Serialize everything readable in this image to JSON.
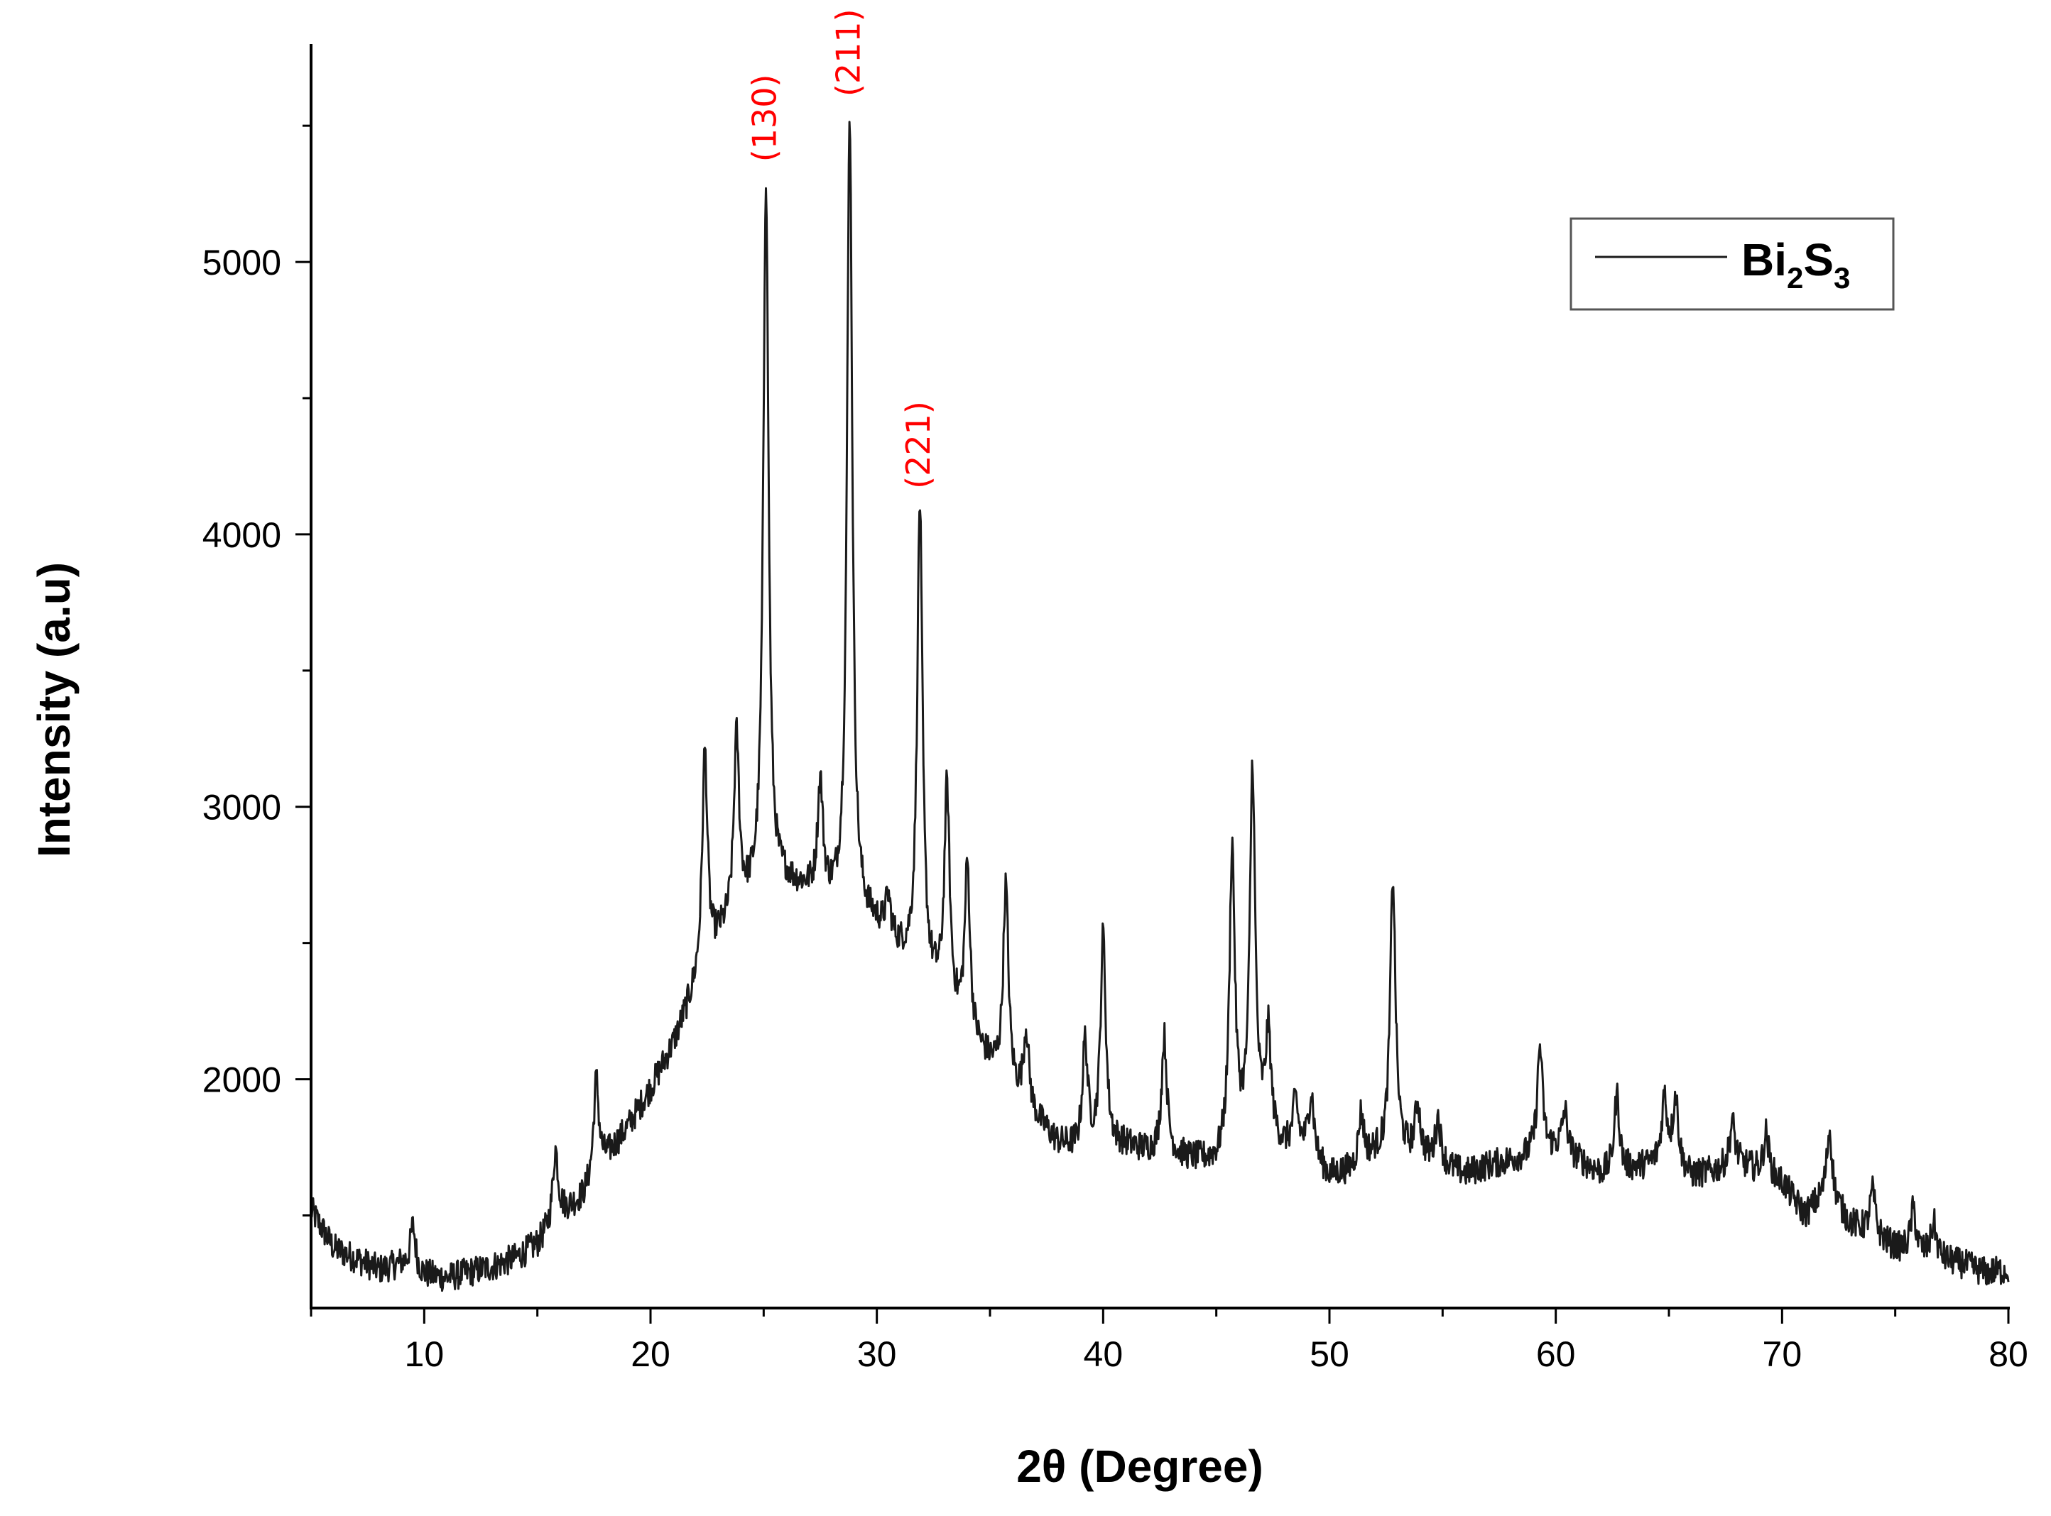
{
  "chart_data": {
    "type": "line",
    "xlabel": "2θ (Degree)",
    "ylabel": "Intensity (a.u)",
    "xlim": [
      5,
      80
    ],
    "ylim": [
      1160,
      5800
    ],
    "x_ticks": [
      10,
      20,
      30,
      40,
      50,
      60,
      70,
      80
    ],
    "y_ticks": [
      2000,
      3000,
      4000,
      5000
    ],
    "grid": false,
    "legend_position": "top-right",
    "colors": {
      "line": "#1a1a1a",
      "peak_labels": "#ff0000",
      "axis": "#000000"
    },
    "series": [
      {
        "name": "Bi2S3",
        "name_main": "Bi",
        "name_sub1": "2",
        "name_mid": "S",
        "name_sub2": "3",
        "baseline": [
          [
            5,
            1520
          ],
          [
            6,
            1380
          ],
          [
            7,
            1340
          ],
          [
            8,
            1300
          ],
          [
            9,
            1320
          ],
          [
            10,
            1280
          ],
          [
            11,
            1270
          ],
          [
            12,
            1290
          ],
          [
            13,
            1310
          ],
          [
            14,
            1340
          ],
          [
            15,
            1390
          ],
          [
            16,
            1500
          ],
          [
            17,
            1560
          ],
          [
            18,
            1700
          ],
          [
            19,
            1820
          ],
          [
            20,
            1960
          ],
          [
            21,
            2120
          ],
          [
            22,
            2330
          ],
          [
            23,
            2500
          ],
          [
            24,
            2620
          ],
          [
            25,
            2690
          ],
          [
            26,
            2710
          ],
          [
            27,
            2680
          ],
          [
            28,
            2640
          ],
          [
            29,
            2600
          ],
          [
            30,
            2550
          ],
          [
            31,
            2460
          ],
          [
            32,
            2380
          ],
          [
            33,
            2270
          ],
          [
            34,
            2150
          ],
          [
            35,
            2050
          ],
          [
            36,
            1950
          ],
          [
            37,
            1850
          ],
          [
            38,
            1760
          ],
          [
            39,
            1730
          ],
          [
            40,
            1760
          ],
          [
            41,
            1750
          ],
          [
            42,
            1730
          ],
          [
            43,
            1720
          ],
          [
            44,
            1700
          ],
          [
            45,
            1690
          ],
          [
            46,
            1780
          ],
          [
            47,
            1800
          ],
          [
            48,
            1740
          ],
          [
            49,
            1730
          ],
          [
            50,
            1640
          ],
          [
            51,
            1660
          ],
          [
            52,
            1720
          ],
          [
            53,
            1730
          ],
          [
            54,
            1710
          ],
          [
            55,
            1680
          ],
          [
            56,
            1650
          ],
          [
            57,
            1680
          ],
          [
            58,
            1700
          ],
          [
            59,
            1720
          ],
          [
            60,
            1740
          ],
          [
            61,
            1700
          ],
          [
            62,
            1650
          ],
          [
            63,
            1660
          ],
          [
            64,
            1680
          ],
          [
            65,
            1700
          ],
          [
            66,
            1640
          ],
          [
            67,
            1660
          ],
          [
            68,
            1690
          ],
          [
            69,
            1660
          ],
          [
            70,
            1620
          ],
          [
            71,
            1500
          ],
          [
            72,
            1580
          ],
          [
            73,
            1470
          ],
          [
            74,
            1430
          ],
          [
            75,
            1380
          ],
          [
            76,
            1360
          ],
          [
            77,
            1340
          ],
          [
            78,
            1320
          ],
          [
            79,
            1290
          ],
          [
            80,
            1300
          ]
        ],
        "peaks": [
          [
            9.5,
            1460
          ],
          [
            15.8,
            1740
          ],
          [
            17.6,
            2000
          ],
          [
            22.4,
            3200
          ],
          [
            23.8,
            3240
          ],
          [
            25.1,
            5300
          ],
          [
            27.5,
            3070
          ],
          [
            28.8,
            5540
          ],
          [
            30.5,
            2640
          ],
          [
            31.9,
            4100
          ],
          [
            33.1,
            3050
          ],
          [
            34.0,
            2770
          ],
          [
            35.7,
            2700
          ],
          [
            36.6,
            2170
          ],
          [
            39.2,
            2130
          ],
          [
            40.0,
            2520
          ],
          [
            42.7,
            2150
          ],
          [
            45.7,
            2840
          ],
          [
            46.6,
            3130
          ],
          [
            47.3,
            2150
          ],
          [
            48.5,
            1910
          ],
          [
            49.2,
            1940
          ],
          [
            51.4,
            1870
          ],
          [
            52.8,
            2740
          ],
          [
            53.9,
            1900
          ],
          [
            54.8,
            1850
          ],
          [
            59.3,
            2120
          ],
          [
            60.4,
            1880
          ],
          [
            62.7,
            1940
          ],
          [
            64.8,
            1930
          ],
          [
            65.3,
            1930
          ],
          [
            67.8,
            1840
          ],
          [
            69.3,
            1800
          ],
          [
            72.1,
            1810
          ],
          [
            74.0,
            1590
          ],
          [
            75.8,
            1520
          ],
          [
            76.7,
            1470
          ]
        ]
      }
    ],
    "annotations": [
      {
        "text": "(130)",
        "x": 25.1,
        "y": 5320
      },
      {
        "text": "(211)",
        "x": 28.8,
        "y": 5560
      },
      {
        "text": "(221)",
        "x": 31.9,
        "y": 4120
      }
    ]
  }
}
